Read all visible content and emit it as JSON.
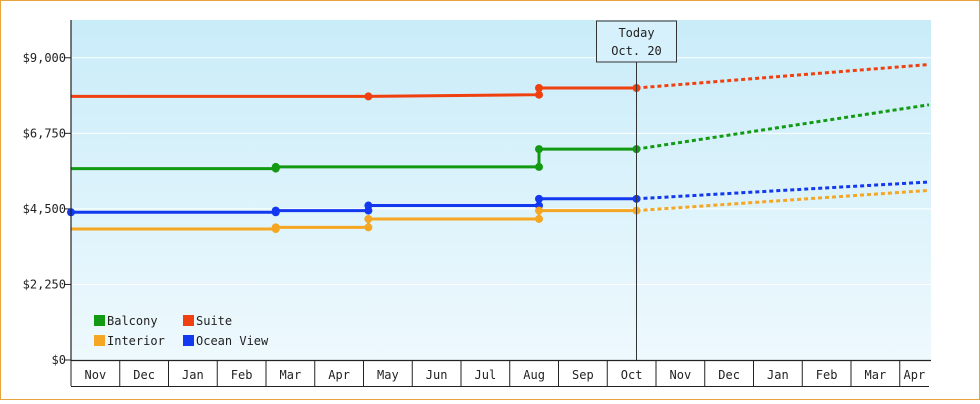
{
  "chart_data": {
    "type": "line",
    "ylim": [
      0,
      10125
    ],
    "y_ticks": [
      {
        "value": 0,
        "label": "$0"
      },
      {
        "value": 2250,
        "label": "$2,250"
      },
      {
        "value": 4500,
        "label": "$4,500"
      },
      {
        "value": 6750,
        "label": "$6,750"
      },
      {
        "value": 9000,
        "label": "$9,000"
      }
    ],
    "x_months": [
      "Nov",
      "Dec",
      "Jan",
      "Feb",
      "Mar",
      "Apr",
      "May",
      "Jun",
      "Jul",
      "Aug",
      "Sep",
      "Oct",
      "Nov",
      "Dec",
      "Jan",
      "Feb",
      "Mar",
      "Apr"
    ],
    "x_range_months": [
      0,
      17.6
    ],
    "today": {
      "line1": "Today",
      "line2": "Oct. 20",
      "x": 11.6
    },
    "legend": [
      {
        "name": "Balcony",
        "color": "#139a13"
      },
      {
        "name": "Suite",
        "color": "#f0400f"
      },
      {
        "name": "Interior",
        "color": "#f5a623"
      },
      {
        "name": "Ocean View",
        "color": "#1238f0"
      }
    ],
    "series": [
      {
        "name": "Suite",
        "color": "#f0400f",
        "history": [
          [
            0,
            7850
          ],
          [
            6.1,
            7850
          ],
          [
            9.6,
            7900
          ],
          [
            9.6,
            8100
          ],
          [
            11.6,
            8100
          ]
        ],
        "markers": [
          [
            6.1,
            7850
          ],
          [
            9.6,
            7900
          ],
          [
            9.6,
            8100
          ],
          [
            11.6,
            8100
          ]
        ],
        "forecast": [
          [
            11.6,
            8100
          ],
          [
            17.6,
            8800
          ]
        ]
      },
      {
        "name": "Balcony",
        "color": "#139a13",
        "history": [
          [
            0,
            5700
          ],
          [
            4.2,
            5700
          ],
          [
            4.2,
            5750
          ],
          [
            9.6,
            5750
          ],
          [
            9.6,
            6280
          ],
          [
            11.6,
            6280
          ]
        ],
        "markers": [
          [
            4.2,
            5700
          ],
          [
            4.2,
            5750
          ],
          [
            9.6,
            5750
          ],
          [
            9.6,
            6280
          ],
          [
            11.6,
            6280
          ]
        ],
        "forecast": [
          [
            11.6,
            6280
          ],
          [
            17.6,
            7600
          ]
        ]
      },
      {
        "name": "Ocean View",
        "color": "#1238f0",
        "history": [
          [
            0,
            4400
          ],
          [
            4.2,
            4400
          ],
          [
            4.2,
            4450
          ],
          [
            6.1,
            4450
          ],
          [
            6.1,
            4600
          ],
          [
            9.6,
            4600
          ],
          [
            9.6,
            4800
          ],
          [
            11.6,
            4800
          ]
        ],
        "markers": [
          [
            0,
            4400
          ],
          [
            4.2,
            4400
          ],
          [
            4.2,
            4450
          ],
          [
            6.1,
            4450
          ],
          [
            6.1,
            4600
          ],
          [
            9.6,
            4600
          ],
          [
            9.6,
            4800
          ],
          [
            11.6,
            4800
          ]
        ],
        "forecast": [
          [
            11.6,
            4800
          ],
          [
            17.6,
            5300
          ]
        ]
      },
      {
        "name": "Interior",
        "color": "#f5a623",
        "history": [
          [
            0,
            3900
          ],
          [
            4.2,
            3900
          ],
          [
            4.2,
            3950
          ],
          [
            6.1,
            3950
          ],
          [
            6.1,
            4200
          ],
          [
            9.6,
            4200
          ],
          [
            9.6,
            4450
          ],
          [
            11.6,
            4450
          ]
        ],
        "markers": [
          [
            4.2,
            3900
          ],
          [
            4.2,
            3950
          ],
          [
            6.1,
            3950
          ],
          [
            6.1,
            4200
          ],
          [
            9.6,
            4200
          ],
          [
            9.6,
            4450
          ],
          [
            11.6,
            4450
          ]
        ],
        "forecast": [
          [
            11.6,
            4450
          ],
          [
            17.6,
            5050
          ]
        ]
      }
    ]
  }
}
